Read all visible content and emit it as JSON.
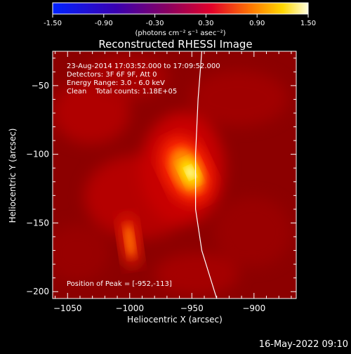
{
  "colorbar": {
    "ticks": [
      "-1.50",
      "-0.90",
      "-0.30",
      "0.30",
      "0.90",
      "1.50"
    ],
    "units": "(photons cm⁻² s⁻¹ asec⁻²)",
    "range": [
      -1.5,
      1.5
    ]
  },
  "plot": {
    "title": "Reconstructed RHESSI Image",
    "info": [
      "23-Aug-2014 17:03:52.000 to 17:09:52.000",
      "Detectors: 3F 6F 9F, Att 0",
      "Energy Range: 3.0 - 6.0 keV",
      "Clean    Total counts: 1.18E+05"
    ],
    "peak": "Position of Peak = [-952,-113]",
    "xlabel": "Heliocentric X (arcsec)",
    "ylabel": "Heliocentric Y (arcsec)",
    "footer": "16-May-2022 09:10"
  },
  "chart_data": {
    "type": "heatmap",
    "title": "Reconstructed RHESSI Image",
    "xlabel": "Heliocentric X (arcsec)",
    "ylabel": "Heliocentric Y (arcsec)",
    "xlim": [
      -1062,
      -866
    ],
    "ylim": [
      -205,
      -25
    ],
    "xticks": [
      -1050,
      -1000,
      -950,
      -900
    ],
    "yticks": [
      -50,
      -100,
      -150,
      -200
    ],
    "color_range": [
      -1.5,
      1.5
    ],
    "sources": [
      {
        "x": -952,
        "y": -113,
        "peak": 1.5
      },
      {
        "x": -1000,
        "y": -163,
        "peak": 0.6
      }
    ],
    "peak_position": [
      -952,
      -113
    ],
    "limb_curve": [
      [
        -942,
        -25
      ],
      [
        -945,
        -60
      ],
      [
        -947,
        -100
      ],
      [
        -947,
        -140
      ],
      [
        -942,
        -170
      ],
      [
        -930,
        -205
      ]
    ]
  }
}
